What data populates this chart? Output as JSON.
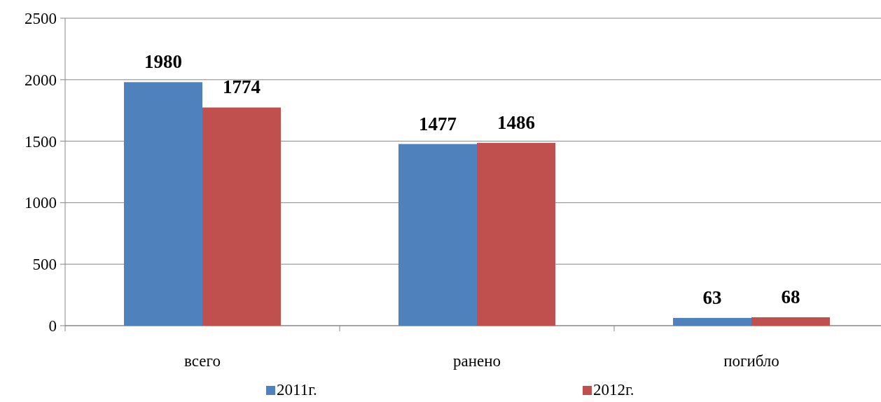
{
  "chart_data": {
    "type": "bar",
    "categories": [
      "всего",
      "ранено",
      "погибло"
    ],
    "series": [
      {
        "name": "2011г.",
        "color": "#4f81bd",
        "values": [
          1980,
          1477,
          63
        ]
      },
      {
        "name": "2012г.",
        "color": "#c0504d",
        "values": [
          1774,
          1486,
          68
        ]
      }
    ],
    "ylim": [
      0,
      2500
    ],
    "yticks": [
      0,
      500,
      1000,
      1500,
      2000,
      2500
    ],
    "grid": "y",
    "legend": "bottom",
    "data_labels": true
  }
}
